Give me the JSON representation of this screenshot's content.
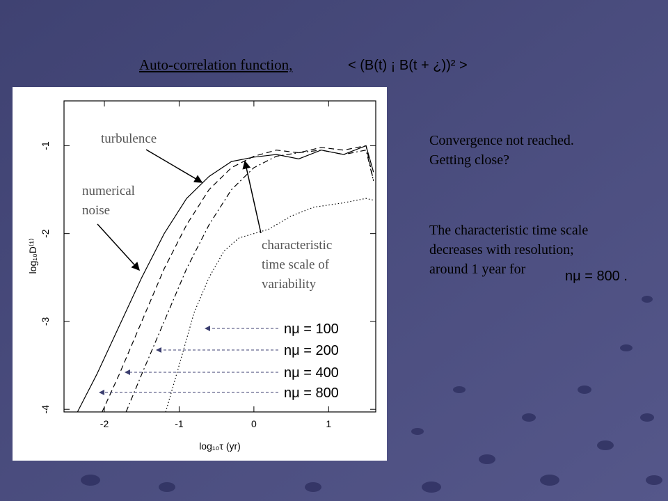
{
  "slide": {
    "title": "Auto-correlation function,",
    "formula": "< (B(t) ¡ B(t + ¿))² >",
    "note1": [
      "Convergence not reached.",
      "Getting close?"
    ],
    "note2": [
      "The characteristic time scale",
      "decreases with resolution;",
      "around 1 year for"
    ],
    "note2_math": "nμ = 800 ."
  },
  "chart_data": {
    "type": "line",
    "xlabel": "log₁₀τ (yr)",
    "ylabel": "log₁₀D⁽¹⁾",
    "xlim": [
      -2.54,
      1.63
    ],
    "ylim": [
      -4.03,
      -0.49
    ],
    "xticks": [
      -2,
      -1,
      0,
      1
    ],
    "yticks": [
      -4,
      -3,
      -2,
      -1
    ],
    "annotations": {
      "turbulence": "turbulence",
      "noise": [
        "numerical",
        "noise"
      ],
      "scale": [
        "characteristic",
        "time scale of",
        "variability"
      ]
    },
    "series": [
      {
        "name": "nμ = 100",
        "color": "#000000",
        "style": "solid",
        "x": [
          -2.36,
          -2.1,
          -1.8,
          -1.5,
          -1.2,
          -0.9,
          -0.6,
          -0.3,
          0,
          0.3,
          0.6,
          0.9,
          1.2,
          1.5,
          1.6
        ],
        "values": [
          -4.03,
          -3.6,
          -3.05,
          -2.5,
          -2.0,
          -1.6,
          -1.35,
          -1.18,
          -1.13,
          -1.1,
          -1.15,
          -1.05,
          -1.1,
          -1.0,
          -1.3
        ]
      },
      {
        "name": "nμ = 200",
        "color": "#000000",
        "style": "dashed",
        "x": [
          -2.03,
          -1.8,
          -1.5,
          -1.2,
          -0.9,
          -0.6,
          -0.3,
          0,
          0.3,
          0.6,
          0.9,
          1.2,
          1.5,
          1.6
        ],
        "values": [
          -4.03,
          -3.6,
          -3.0,
          -2.4,
          -1.9,
          -1.5,
          -1.25,
          -1.12,
          -1.05,
          -1.08,
          -1.02,
          -1.05,
          -1.0,
          -1.4
        ]
      },
      {
        "name": "nμ = 400",
        "color": "#000000",
        "style": "dashdot",
        "x": [
          -1.71,
          -1.5,
          -1.2,
          -0.9,
          -0.6,
          -0.3,
          0,
          0.3,
          0.6,
          0.9,
          1.2,
          1.5,
          1.6
        ],
        "values": [
          -4.03,
          -3.6,
          -3.0,
          -2.4,
          -1.9,
          -1.5,
          -1.25,
          -1.12,
          -1.08,
          -1.05,
          -1.1,
          -1.05,
          -1.4
        ]
      },
      {
        "name": "nμ = 800",
        "color": "#000000",
        "style": "dotted",
        "x": [
          -1.18,
          -1.0,
          -0.8,
          -0.6,
          -0.4,
          -0.2,
          0.2,
          0.5,
          0.8,
          1.2,
          1.5,
          1.6
        ],
        "values": [
          -4.03,
          -3.5,
          -2.9,
          -2.5,
          -2.2,
          -2.05,
          -1.95,
          -1.8,
          -1.7,
          -1.65,
          -1.6,
          -1.62
        ]
      }
    ]
  }
}
